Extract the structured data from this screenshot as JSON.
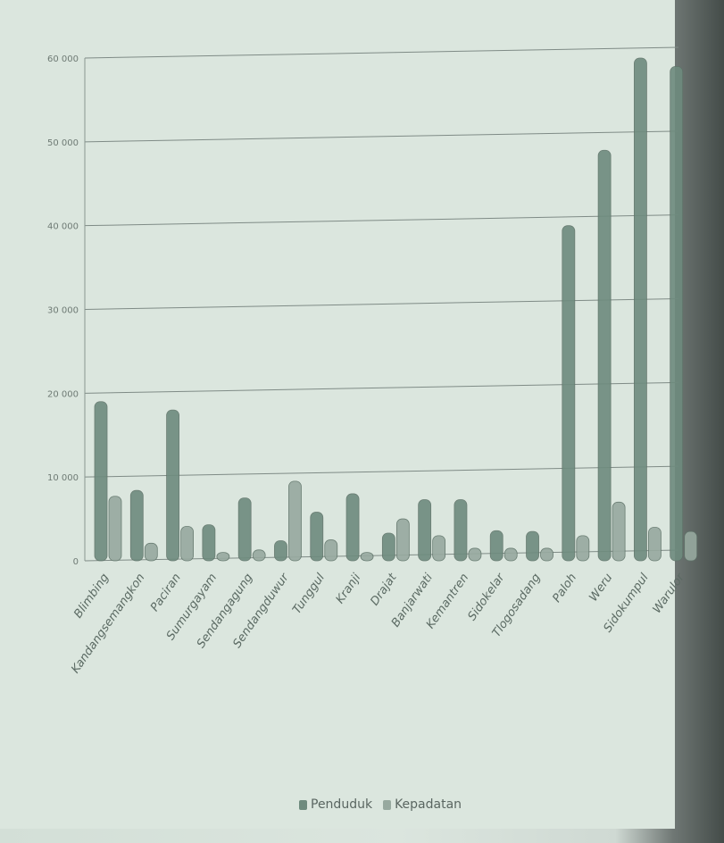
{
  "chart_data": {
    "type": "bar",
    "categories": [
      "Blimbing",
      "Kandangsemangkon",
      "Paciran",
      "Sumurgayam",
      "Sendangagung",
      "Sendangduwur",
      "Tunggul",
      "Kranji",
      "Drajat",
      "Banjarwati",
      "Kemantren",
      "Sidokelar",
      "Tlogosadang",
      "Paloh",
      "Weru",
      "Sidokumpul",
      "Warulor"
    ],
    "series": [
      {
        "name": "Penduduk",
        "values": [
          19000,
          8400,
          18000,
          4300,
          7500,
          2400,
          5800,
          8000,
          3300,
          7300,
          7300,
          3600,
          3500,
          40000,
          49000,
          60000,
          59000
        ]
      },
      {
        "name": "Kepadatan",
        "values": [
          7700,
          2100,
          4100,
          1000,
          1300,
          9500,
          2500,
          1000,
          5000,
          3000,
          1500,
          1500,
          1500,
          3000,
          7000,
          4000,
          3500
        ]
      }
    ],
    "colors": [
      "#6e8b7e",
      "#97a99f"
    ],
    "ylim": [
      0,
      60000
    ],
    "yticks": [
      "0",
      "10 000",
      "20 000",
      "30 000",
      "40 000",
      "50 000",
      "60 000"
    ],
    "grid": true,
    "legend_position": "bottom-center"
  }
}
